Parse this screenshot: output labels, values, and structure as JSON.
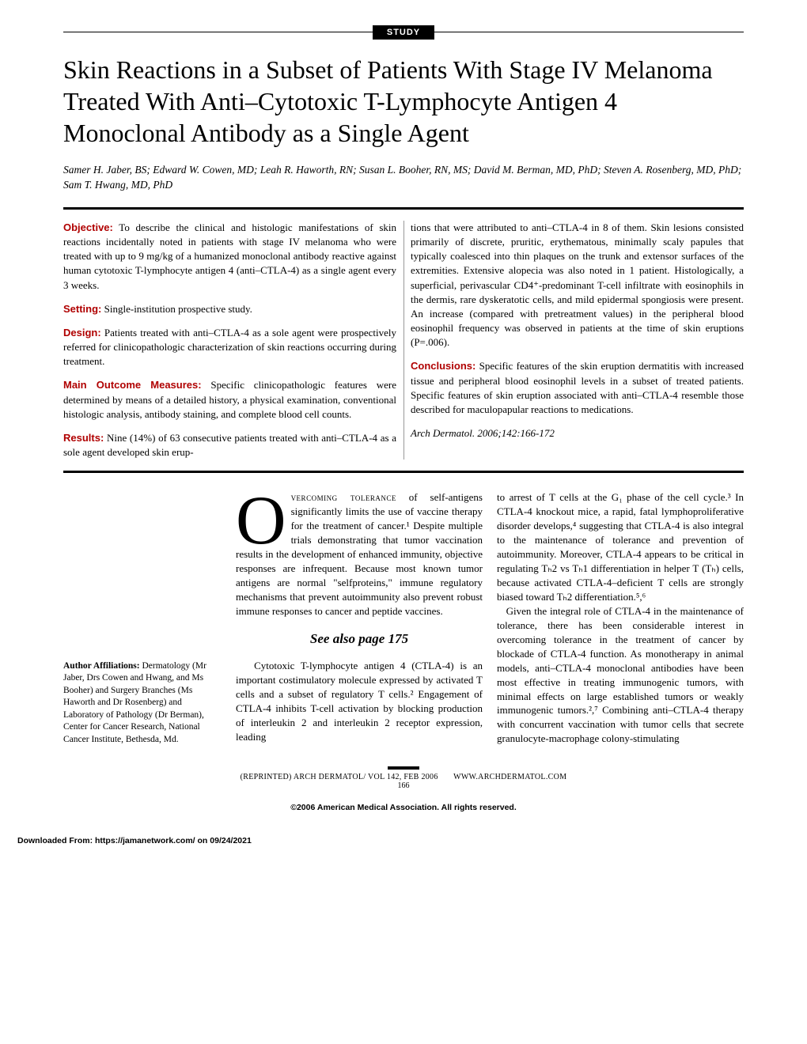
{
  "badge": "STUDY",
  "title": "Skin Reactions in a Subset of Patients With Stage IV Melanoma Treated With Anti–Cytotoxic T-Lymphocyte Antigen 4 Monoclonal Antibody as a Single Agent",
  "authors": "Samer H. Jaber, BS; Edward W. Cowen, MD; Leah R. Haworth, RN; Susan L. Booher, RN, MS; David M. Berman, MD, PhD; Steven A. Rosenberg, MD, PhD; Sam T. Hwang, MD, PhD",
  "labels": {
    "objective": "Objective:",
    "setting": "Setting:",
    "design": "Design:",
    "mainOutcome": "Main Outcome Measures:",
    "results": "Results:",
    "conclusions": "Conclusions:"
  },
  "abstract": {
    "objective": " To describe the clinical and histologic manifestations of skin reactions incidentally noted in patients with stage IV melanoma who were treated with up to 9 mg/kg of a humanized monoclonal antibody reactive against human cytotoxic T-lymphocyte antigen 4 (anti–CTLA-4) as a single agent every 3 weeks.",
    "setting": " Single-institution prospective study.",
    "design": " Patients treated with anti–CTLA-4 as a sole agent were prospectively referred for clinicopathologic characterization of skin reactions occurring during treatment.",
    "mainOutcome": " Specific clinicopathologic features were determined by means of a detailed history, a physical examination, conventional histologic analysis, antibody staining, and complete blood cell counts.",
    "resultsA": " Nine (14%) of 63 consecutive patients treated with anti–CTLA-4 as a sole agent developed skin erup-",
    "resultsB": "tions that were attributed to anti–CTLA-4 in 8 of them. Skin lesions consisted primarily of discrete, pruritic, erythematous, minimally scaly papules that typically coalesced into thin plaques on the trunk and extensor surfaces of the extremities. Extensive alopecia was also noted in 1 patient. Histologically, a superficial, perivascular CD4⁺-predominant T-cell infiltrate with eosinophils in the dermis, rare dyskeratotic cells, and mild epidermal spongiosis were present. An increase (compared with pretreatment values) in the peripheral blood eosinophil frequency was observed in patients at the time of skin eruptions (P=.006).",
    "conclusions": " Specific features of the skin eruption dermatitis with increased tissue and peripheral blood eosinophil levels in a subset of treated patients. Specific features of skin eruption associated with anti–CTLA-4 resemble those described for maculopapular reactions to medications."
  },
  "citation": "Arch Dermatol. 2006;142:166-172",
  "dropcap": "O",
  "body": {
    "p1a": "vercoming tolerance",
    "p1b": " of self-antigens significantly limits the use of vaccine therapy for the treatment of cancer.¹ Despite multiple trials demonstrating that tumor vaccination results in the development of enhanced immunity, objective responses are infrequent. Because most known tumor antigens are normal \"selfproteins,\" immune regulatory mechanisms that prevent autoimmunity also prevent robust immune responses to cancer and peptide vaccines.",
    "seeAlso": "See also page 175",
    "p2": "Cytotoxic T-lymphocyte antigen 4 (CTLA-4) is an important costimulatory molecule expressed by activated T cells and a subset of regulatory T cells.² Engagement of CTLA-4 inhibits T-cell activation by blocking production of interleukin 2 and interleukin 2 receptor expression, leading",
    "p3": "to arrest of T cells at the G₁ phase of the cell cycle.³ In CTLA-4 knockout mice, a rapid, fatal lymphoproliferative disorder develops,⁴ suggesting that CTLA-4 is also integral to the maintenance of tolerance and prevention of autoimmunity. Moreover, CTLA-4 appears to be critical in regulating Tₕ2 vs Tₕ1 differentiation in helper T (Tₕ) cells, because activated CTLA-4–deficient T cells are strongly biased toward Tₕ2 differentiation.⁵,⁶",
    "p4": "Given the integral role of CTLA-4 in the maintenance of tolerance, there has been considerable interest in overcoming tolerance in the treatment of cancer by blockade of CTLA-4 function. As monotherapy in animal models, anti–CTLA-4 monoclonal antibodies have been most effective in treating immunogenic tumors, with minimal effects on large established tumors or weakly immunogenic tumors.²,⁷ Combining anti–CTLA-4 therapy with concurrent vaccination with tumor cells that secrete granulocyte-macrophage colony-stimulating"
  },
  "affilLabel": "Author Affiliations:",
  "affilText": " Dermatology (Mr Jaber, Drs Cowen and Hwang, and Ms Booher) and Surgery Branches (Ms Haworth and Dr Rosenberg) and Laboratory of Pathology (Dr Berman), Center for Cancer Research, National Cancer Institute, Bethesda, Md.",
  "footer": {
    "journal": "(REPRINTED) ARCH DERMATOL/ VOL 142, FEB 2006",
    "url": "WWW.ARCHDERMATOL.COM",
    "page": "166",
    "copyright": "©2006 American Medical Association. All rights reserved.",
    "download": "Downloaded From: https://jamanetwork.com/ on 09/24/2021"
  },
  "colors": {
    "label": "#b00000",
    "text": "#000000",
    "bg": "#ffffff"
  }
}
